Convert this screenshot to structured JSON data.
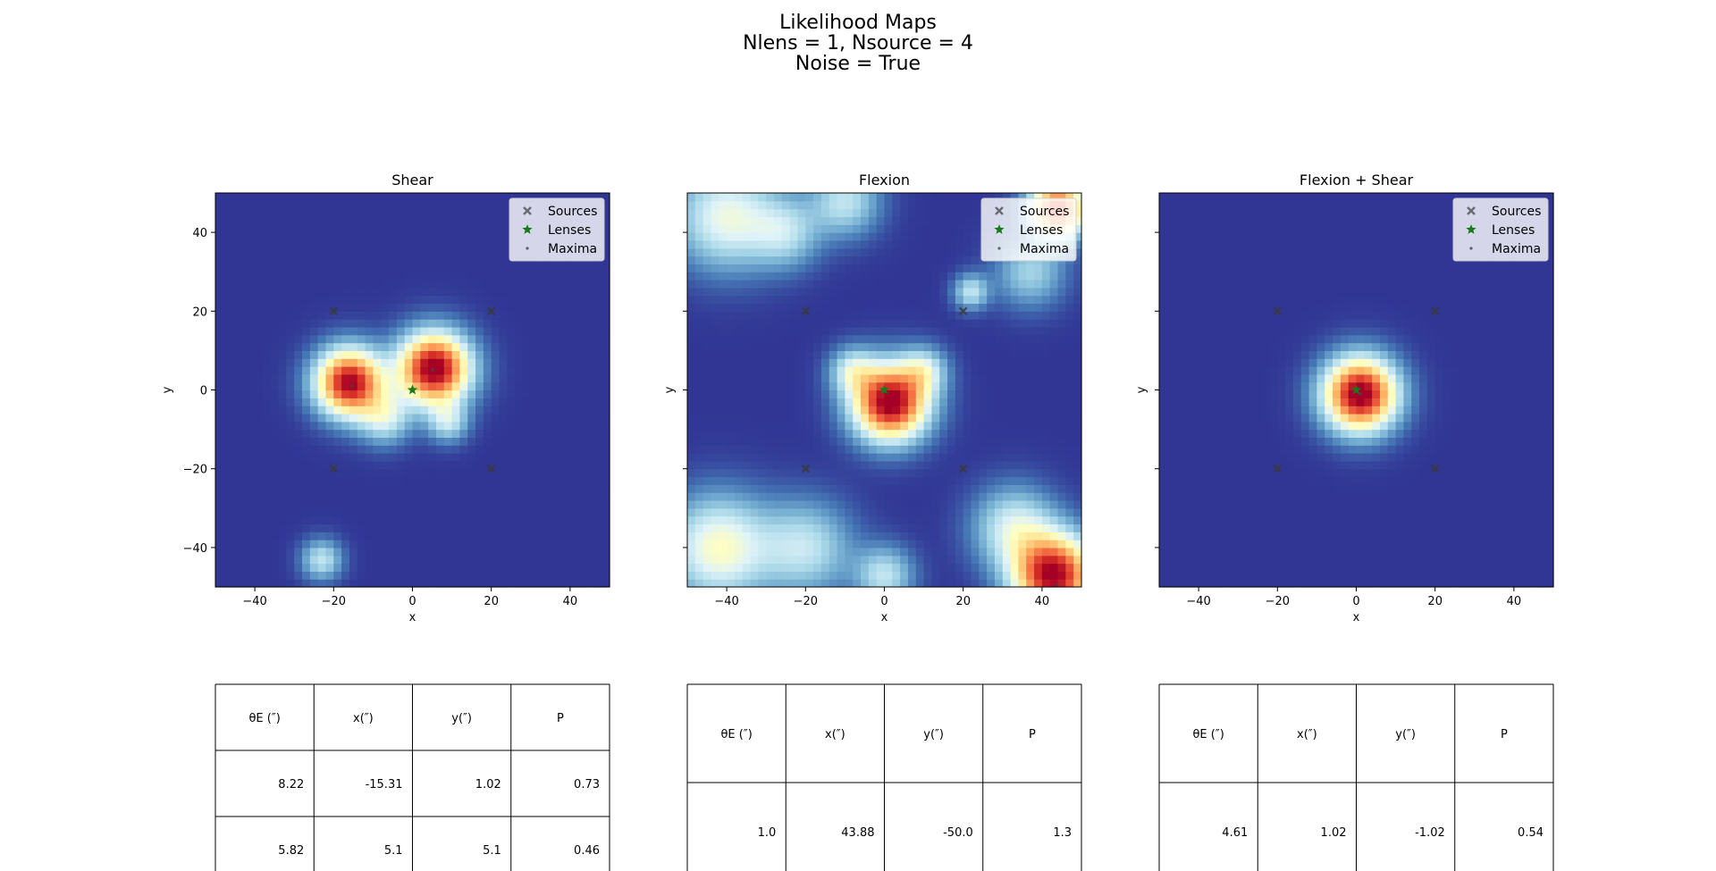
{
  "figure": {
    "suptitle_lines": [
      "Likelihood Maps",
      "Nlens = 1, Nsource = 4",
      "Noise = True"
    ]
  },
  "colors": {
    "sources": "#3a3a3a",
    "lenses": "#1a7a1a",
    "maxima": "#444444",
    "colormap": "RdYlBu_r",
    "background": "#313695"
  },
  "chart_data": [
    {
      "type": "heatmap",
      "title": "Shear",
      "xlabel": "x",
      "ylabel": "y",
      "xlim": [
        -50,
        50
      ],
      "ylim": [
        -50,
        50
      ],
      "xticks": [
        -40,
        -20,
        0,
        20,
        40
      ],
      "yticks": [
        40,
        20,
        0,
        -20,
        -40
      ],
      "show_yticklabels": true,
      "legend": {
        "placement": "top-right",
        "entries": [
          "Sources",
          "Lenses",
          "Maxima"
        ]
      },
      "sources": [
        [
          -20,
          20
        ],
        [
          20,
          20
        ],
        [
          -20,
          -20
        ],
        [
          20,
          -20
        ]
      ],
      "lenses": [
        [
          0,
          0
        ]
      ],
      "maxima": [
        [
          -15.31,
          1.02
        ],
        [
          5.1,
          5.1
        ]
      ],
      "blobs": [
        {
          "x": -16,
          "y": 2,
          "amp": 1.0,
          "sigma": 5.8
        },
        {
          "x": 5.5,
          "y": 5.5,
          "amp": 1.05,
          "sigma": 6.2
        },
        {
          "x": -7,
          "y": -7,
          "amp": 0.32,
          "sigma": 4.5
        },
        {
          "x": 9,
          "y": -8,
          "amp": 0.28,
          "sigma": 3.5
        },
        {
          "x": -23,
          "y": -43,
          "amp": 0.3,
          "sigma": 3.5
        }
      ],
      "table": {
        "columns": [
          "θE (″)",
          "x(″)",
          "y(″)",
          "P"
        ],
        "rows": [
          [
            "8.22",
            "-15.31",
            "1.02",
            "0.73"
          ],
          [
            "5.82",
            "5.1",
            "5.1",
            "0.46"
          ]
        ]
      }
    },
    {
      "type": "heatmap",
      "title": "Flexion",
      "xlabel": "x",
      "ylabel": "y",
      "xlim": [
        -50,
        50
      ],
      "ylim": [
        -50,
        50
      ],
      "xticks": [
        -40,
        -20,
        0,
        20,
        40
      ],
      "yticks": [
        40,
        20,
        0,
        -20,
        -40
      ],
      "show_yticklabels": false,
      "legend": {
        "placement": "top-right",
        "entries": [
          "Sources",
          "Lenses",
          "Maxima"
        ]
      },
      "sources": [
        [
          -20,
          20
        ],
        [
          20,
          20
        ],
        [
          -20,
          -20
        ],
        [
          20,
          -20
        ]
      ],
      "lenses": [
        [
          0,
          0
        ]
      ],
      "maxima": [
        [
          43.88,
          -50.0
        ]
      ],
      "blobs": [
        {
          "x": 1.5,
          "y": -3,
          "amp": 1.05,
          "sigma": 6.5
        },
        {
          "x": -8,
          "y": 5,
          "amp": 0.3,
          "sigma": 4
        },
        {
          "x": 10,
          "y": 5,
          "amp": 0.3,
          "sigma": 4
        },
        {
          "x": 43,
          "y": -47,
          "amp": 1.0,
          "sigma": 7
        },
        {
          "x": 33,
          "y": -35,
          "amp": 0.35,
          "sigma": 7
        },
        {
          "x": -42,
          "y": -40,
          "amp": 0.45,
          "sigma": 9
        },
        {
          "x": -20,
          "y": -40,
          "amp": 0.3,
          "sigma": 8
        },
        {
          "x": -40,
          "y": 44,
          "amp": 0.4,
          "sigma": 9
        },
        {
          "x": -25,
          "y": 40,
          "amp": 0.25,
          "sigma": 6
        },
        {
          "x": -10,
          "y": 48,
          "amp": 0.3,
          "sigma": 6
        },
        {
          "x": 44,
          "y": 46,
          "amp": 0.85,
          "sigma": 5
        },
        {
          "x": 37,
          "y": 30,
          "amp": 0.25,
          "sigma": 6
        },
        {
          "x": 22,
          "y": 25,
          "amp": 0.3,
          "sigma": 3
        },
        {
          "x": 0,
          "y": -47,
          "amp": 0.3,
          "sigma": 5
        }
      ],
      "table": {
        "columns": [
          "θE (″)",
          "x(″)",
          "y(″)",
          "P"
        ],
        "rows": [
          [
            "1.0",
            "43.88",
            "-50.0",
            "1.3"
          ]
        ]
      }
    },
    {
      "type": "heatmap",
      "title": "Flexion + Shear",
      "xlabel": "x",
      "ylabel": "y",
      "xlim": [
        -50,
        50
      ],
      "ylim": [
        -50,
        50
      ],
      "xticks": [
        -40,
        -20,
        0,
        20,
        40
      ],
      "yticks": [
        40,
        20,
        0,
        -20,
        -40
      ],
      "show_yticklabels": false,
      "legend": {
        "placement": "top-right",
        "entries": [
          "Sources",
          "Lenses",
          "Maxima"
        ]
      },
      "sources": [
        [
          -20,
          20
        ],
        [
          20,
          20
        ],
        [
          -20,
          -20
        ],
        [
          20,
          -20
        ]
      ],
      "lenses": [
        [
          0,
          0
        ]
      ],
      "maxima": [
        [
          1.02,
          -1.02
        ]
      ],
      "blobs": [
        {
          "x": 1,
          "y": -1,
          "amp": 1.05,
          "sigma": 6.3
        }
      ],
      "table": {
        "columns": [
          "θE (″)",
          "x(″)",
          "y(″)",
          "P"
        ],
        "rows": [
          [
            "4.61",
            "1.02",
            "-1.02",
            "0.54"
          ]
        ]
      }
    }
  ]
}
